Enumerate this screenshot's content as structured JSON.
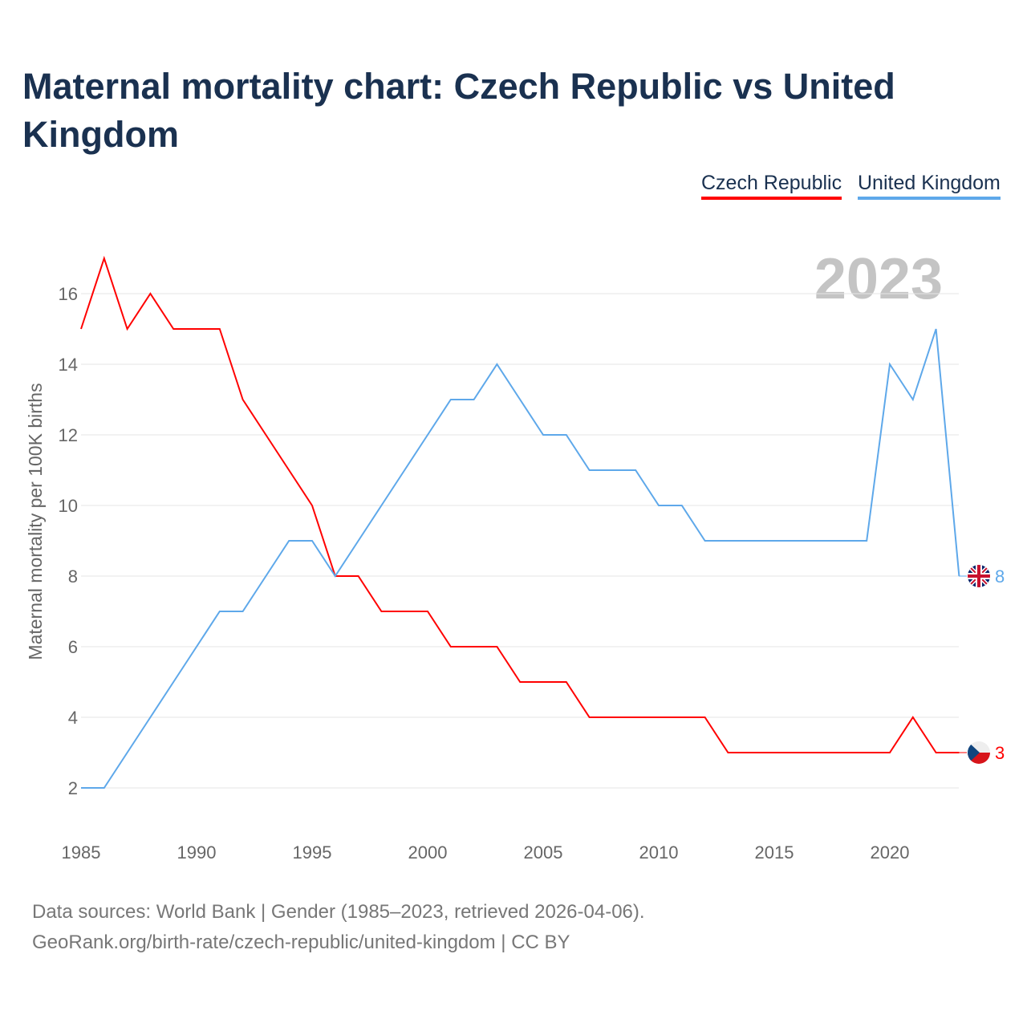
{
  "title": "Maternal mortality chart: Czech Republic vs United Kingdom",
  "footer": {
    "line1": "Data sources: World Bank | Gender (1985–2023, retrieved 2026-04-06).",
    "line2": "GeoRank.org/birth-rate/czech-republic/united-kingdom | CC BY"
  },
  "chart_data": {
    "type": "line",
    "title": "Maternal mortality chart: Czech Republic vs United Kingdom",
    "ylabel": "Maternal mortality per 100K births",
    "xlabel": "",
    "year_label": "2023",
    "x": [
      1985,
      1986,
      1987,
      1988,
      1989,
      1990,
      1991,
      1992,
      1993,
      1994,
      1995,
      1996,
      1997,
      1998,
      1999,
      2000,
      2001,
      2002,
      2003,
      2004,
      2005,
      2006,
      2007,
      2008,
      2009,
      2010,
      2011,
      2012,
      2013,
      2014,
      2015,
      2016,
      2017,
      2018,
      2019,
      2020,
      2021,
      2022,
      2023
    ],
    "xticks": [
      1985,
      1990,
      1995,
      2000,
      2005,
      2010,
      2015,
      2020
    ],
    "yticks": [
      2,
      4,
      6,
      8,
      10,
      12,
      14,
      16
    ],
    "xlim": [
      1985,
      2023
    ],
    "ylim": [
      1,
      17
    ],
    "grid": true,
    "legend_position": "top-right",
    "series": [
      {
        "name": "Czech Republic",
        "color": "#ff0000",
        "end_label": "3",
        "values": [
          15,
          17,
          15,
          16,
          15,
          15,
          15,
          13,
          12,
          11,
          10,
          8,
          8,
          7,
          7,
          7,
          6,
          6,
          6,
          5,
          5,
          5,
          4,
          4,
          4,
          4,
          4,
          4,
          3,
          3,
          3,
          3,
          3,
          3,
          3,
          3,
          4,
          3,
          3
        ]
      },
      {
        "name": "United Kingdom",
        "color": "#5ea8ea",
        "end_label": "8",
        "values": [
          2,
          2,
          3,
          4,
          5,
          6,
          7,
          7,
          8,
          9,
          9,
          8,
          9,
          10,
          11,
          12,
          13,
          13,
          14,
          13,
          12,
          12,
          11,
          11,
          11,
          10,
          10,
          9,
          9,
          9,
          9,
          9,
          9,
          9,
          9,
          14,
          13,
          15,
          8
        ]
      }
    ]
  }
}
